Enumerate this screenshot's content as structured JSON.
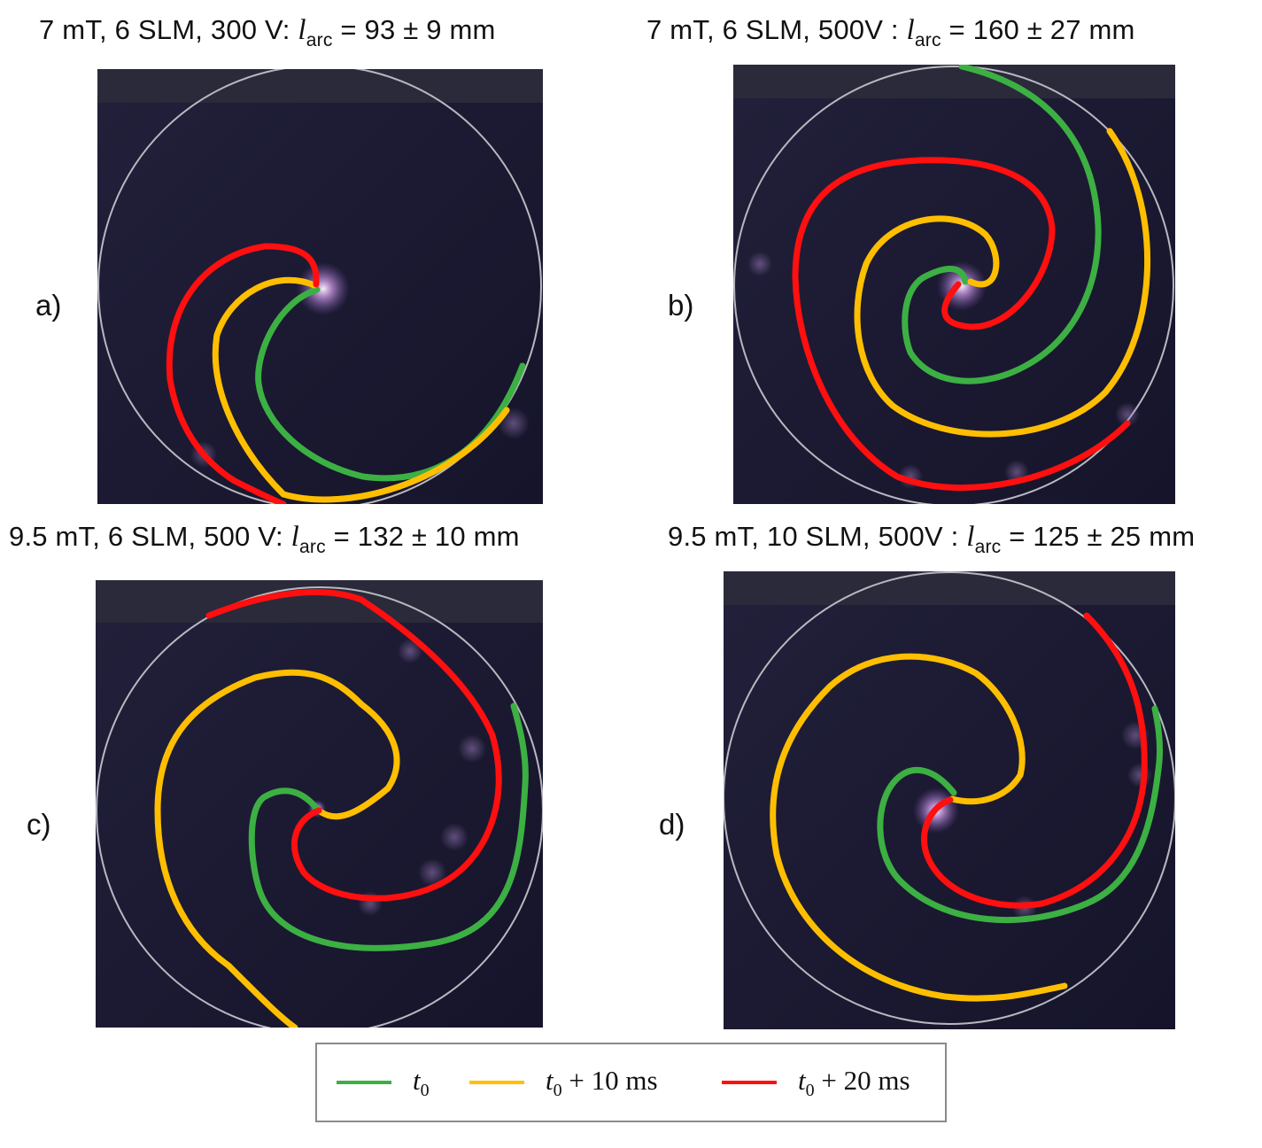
{
  "panels": [
    {
      "label": "a)",
      "field": "7 mT",
      "flow": "6 SLM",
      "voltage": "300 V",
      "sep": ":",
      "sym": "l",
      "sub": "arc",
      "value": "= 93 ± 9 mm"
    },
    {
      "label": "b)",
      "field": "7 mT",
      "flow": "6 SLM",
      "voltage": "500V",
      "sep": " :",
      "sym": "l",
      "sub": "arc",
      "value": "= 160 ± 27 mm"
    },
    {
      "label": "c)",
      "field": "9.5 mT",
      "flow": "6 SLM",
      "voltage": "500 V",
      "sep": ":",
      "sym": "l",
      "sub": "arc",
      "value": "= 132 ± 10 mm"
    },
    {
      "label": "d)",
      "field": "9.5 mT",
      "flow": "10 SLM",
      "voltage": "500V",
      "sep": " :",
      "sym": "l",
      "sub": "arc",
      "value": "= 125 ± 25 mm"
    }
  ],
  "legend": [
    {
      "t": "t",
      "sub": "0",
      "rest": "",
      "color": "#3cb043"
    },
    {
      "t": "t",
      "sub": "0",
      "rest": " + 10 ms",
      "color": "#ffbf00"
    },
    {
      "t": "t",
      "sub": "0",
      "rest": " + 20 ms",
      "color": "#ff0f0f"
    }
  ],
  "colors": {
    "green": "#3cb043",
    "yellow": "#ffbf00",
    "red": "#ff0f0f",
    "background": "#1a1830",
    "ring": "#b8b8c0"
  }
}
